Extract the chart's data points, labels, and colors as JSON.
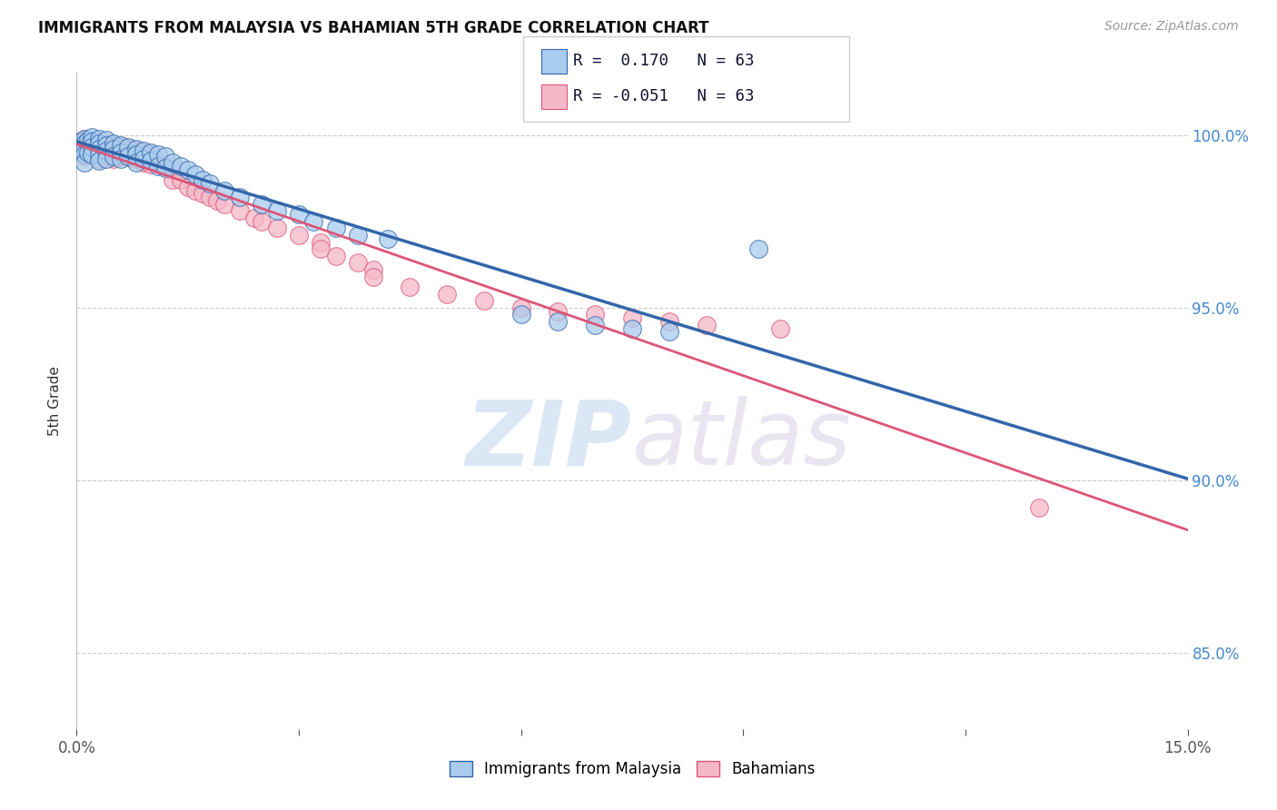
{
  "title": "IMMIGRANTS FROM MALAYSIA VS BAHAMIAN 5TH GRADE CORRELATION CHART",
  "source": "Source: ZipAtlas.com",
  "ylabel": "5th Grade",
  "y_ticks": [
    "85.0%",
    "90.0%",
    "95.0%",
    "100.0%"
  ],
  "y_tick_vals": [
    0.85,
    0.9,
    0.95,
    1.0
  ],
  "x_range": [
    0.0,
    0.15
  ],
  "y_range": [
    0.828,
    1.018
  ],
  "legend_blue_label": "Immigrants from Malaysia",
  "legend_pink_label": "Bahamians",
  "R_blue": 0.17,
  "R_pink": -0.051,
  "N": 63,
  "blue_scatter_x": [
    0.0005,
    0.0005,
    0.0008,
    0.001,
    0.001,
    0.001,
    0.001,
    0.001,
    0.0015,
    0.0015,
    0.002,
    0.002,
    0.002,
    0.002,
    0.003,
    0.003,
    0.003,
    0.003,
    0.003,
    0.004,
    0.004,
    0.004,
    0.004,
    0.005,
    0.005,
    0.005,
    0.006,
    0.006,
    0.006,
    0.007,
    0.007,
    0.008,
    0.008,
    0.008,
    0.009,
    0.009,
    0.01,
    0.01,
    0.011,
    0.011,
    0.012,
    0.012,
    0.013,
    0.014,
    0.015,
    0.016,
    0.017,
    0.018,
    0.02,
    0.022,
    0.025,
    0.027,
    0.03,
    0.032,
    0.035,
    0.038,
    0.042,
    0.06,
    0.065,
    0.07,
    0.075,
    0.08,
    0.092
  ],
  "blue_scatter_y": [
    0.998,
    0.996,
    0.997,
    0.999,
    0.9975,
    0.996,
    0.9945,
    0.992,
    0.9985,
    0.995,
    0.9995,
    0.998,
    0.9965,
    0.9945,
    0.999,
    0.9975,
    0.996,
    0.9945,
    0.9925,
    0.9985,
    0.997,
    0.9955,
    0.993,
    0.9975,
    0.996,
    0.994,
    0.997,
    0.995,
    0.993,
    0.9965,
    0.994,
    0.996,
    0.9945,
    0.992,
    0.9955,
    0.993,
    0.995,
    0.9925,
    0.9945,
    0.991,
    0.994,
    0.9905,
    0.992,
    0.991,
    0.99,
    0.9885,
    0.987,
    0.986,
    0.984,
    0.982,
    0.98,
    0.978,
    0.977,
    0.975,
    0.973,
    0.971,
    0.97,
    0.948,
    0.946,
    0.945,
    0.944,
    0.943,
    0.967
  ],
  "pink_scatter_x": [
    0.0005,
    0.0008,
    0.001,
    0.001,
    0.001,
    0.001,
    0.0015,
    0.002,
    0.002,
    0.002,
    0.003,
    0.003,
    0.003,
    0.003,
    0.004,
    0.004,
    0.004,
    0.005,
    0.005,
    0.005,
    0.006,
    0.006,
    0.007,
    0.007,
    0.008,
    0.008,
    0.009,
    0.009,
    0.01,
    0.01,
    0.011,
    0.012,
    0.013,
    0.013,
    0.014,
    0.015,
    0.016,
    0.017,
    0.018,
    0.019,
    0.02,
    0.022,
    0.024,
    0.025,
    0.027,
    0.03,
    0.033,
    0.033,
    0.035,
    0.038,
    0.04,
    0.04,
    0.045,
    0.05,
    0.055,
    0.06,
    0.065,
    0.07,
    0.075,
    0.08,
    0.085,
    0.095,
    0.13
  ],
  "pink_scatter_y": [
    0.998,
    0.997,
    0.999,
    0.9975,
    0.996,
    0.994,
    0.9985,
    0.998,
    0.9965,
    0.9945,
    0.998,
    0.997,
    0.9955,
    0.993,
    0.9975,
    0.996,
    0.9935,
    0.997,
    0.9955,
    0.993,
    0.9965,
    0.994,
    0.996,
    0.9935,
    0.9955,
    0.993,
    0.995,
    0.992,
    0.9945,
    0.9915,
    0.992,
    0.991,
    0.99,
    0.987,
    0.987,
    0.985,
    0.984,
    0.983,
    0.982,
    0.981,
    0.98,
    0.978,
    0.976,
    0.975,
    0.973,
    0.971,
    0.969,
    0.967,
    0.965,
    0.963,
    0.961,
    0.959,
    0.956,
    0.954,
    0.952,
    0.95,
    0.949,
    0.948,
    0.947,
    0.946,
    0.945,
    0.944,
    0.892
  ],
  "blue_color": "#aaccee",
  "pink_color": "#f5b8c8",
  "blue_line_color": "#3366aa",
  "pink_line_color": "#dd5577",
  "watermark_zip_color": "#c8d8ee",
  "watermark_atlas_color": "#d8cce8",
  "background_color": "#ffffff",
  "grid_color": "#cccccc"
}
